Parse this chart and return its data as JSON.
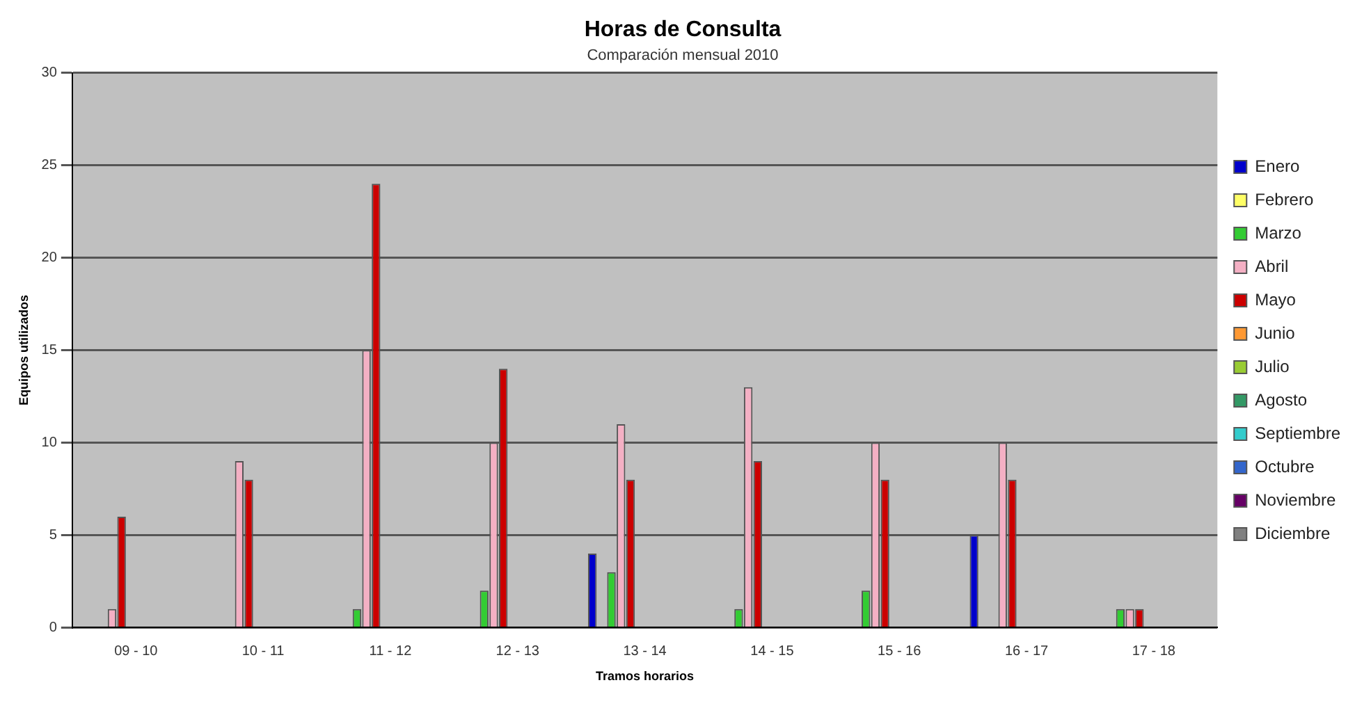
{
  "chart_data": {
    "type": "bar",
    "title": "Horas de Consulta",
    "subtitle": "Comparación mensual 2010",
    "xlabel": "Tramos horarios",
    "ylabel": "Equipos utilizados",
    "categories": [
      "09 - 10",
      "10 - 11",
      "11 - 12",
      "12 - 13",
      "13 - 14",
      "14 - 15",
      "15 - 16",
      "16 - 17",
      "17 - 18"
    ],
    "series": [
      {
        "name": "Enero",
        "color": "#0000cc",
        "values": [
          null,
          null,
          null,
          null,
          4,
          null,
          null,
          5,
          null
        ]
      },
      {
        "name": "Febrero",
        "color": "#ffff66",
        "values": [
          null,
          null,
          null,
          null,
          null,
          null,
          null,
          null,
          null
        ]
      },
      {
        "name": "Marzo",
        "color": "#33cc33",
        "values": [
          null,
          null,
          1,
          2,
          3,
          1,
          2,
          null,
          1
        ]
      },
      {
        "name": "Abril",
        "color": "#f4b0c4",
        "values": [
          1,
          9,
          15,
          10,
          11,
          13,
          10,
          10,
          1
        ]
      },
      {
        "name": "Mayo",
        "color": "#cc0000",
        "values": [
          6,
          8,
          24,
          14,
          8,
          9,
          8,
          8,
          1
        ]
      },
      {
        "name": "Junio",
        "color": "#ff9933",
        "values": [
          null,
          null,
          null,
          null,
          null,
          null,
          null,
          null,
          null
        ]
      },
      {
        "name": "Julio",
        "color": "#99cc33",
        "values": [
          null,
          null,
          null,
          null,
          null,
          null,
          null,
          null,
          null
        ]
      },
      {
        "name": "Agosto",
        "color": "#339966",
        "values": [
          null,
          null,
          null,
          null,
          null,
          null,
          null,
          null,
          null
        ]
      },
      {
        "name": "Septiembre",
        "color": "#33cccc",
        "values": [
          null,
          null,
          null,
          null,
          null,
          null,
          null,
          null,
          null
        ]
      },
      {
        "name": "Octubre",
        "color": "#3366cc",
        "values": [
          null,
          null,
          null,
          null,
          null,
          null,
          null,
          null,
          null
        ]
      },
      {
        "name": "Noviembre",
        "color": "#660066",
        "values": [
          null,
          null,
          null,
          null,
          null,
          null,
          null,
          null,
          null
        ]
      },
      {
        "name": "Diciembre",
        "color": "#808080",
        "values": [
          null,
          null,
          null,
          null,
          null,
          null,
          null,
          null,
          null
        ]
      }
    ],
    "ylim": [
      0,
      30
    ],
    "yticks": [
      0,
      5,
      10,
      15,
      20,
      25,
      30
    ],
    "grid": "y",
    "legend": "right"
  }
}
